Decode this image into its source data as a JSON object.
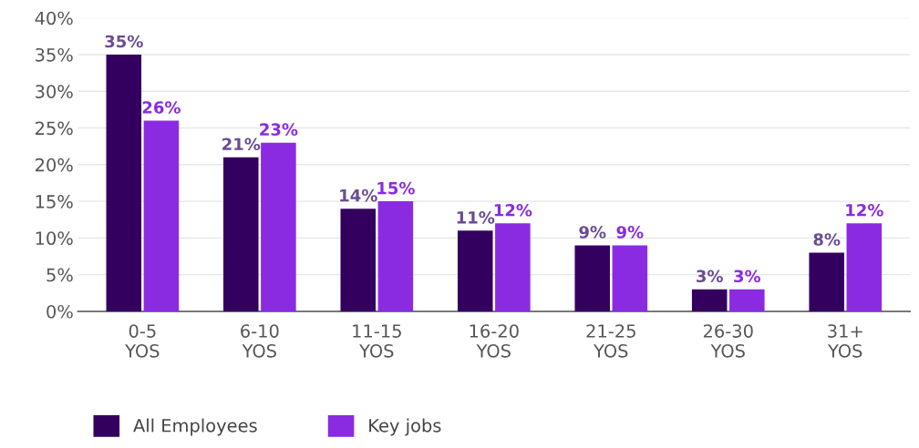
{
  "chart_data": {
    "type": "bar",
    "categories": [
      "0-5\nYOS",
      "6-10\nYOS",
      "11-15\nYOS",
      "16-20\nYOS",
      "21-25\nYOS",
      "26-30\nYOS",
      "31+\nYOS"
    ],
    "series": [
      {
        "name": "All Employees",
        "color": "#34005f",
        "values": [
          35,
          21,
          14,
          11,
          9,
          3,
          8
        ],
        "value_labels": [
          "35%",
          "21%",
          "14%",
          "11%",
          "9%",
          "3%",
          "8%"
        ]
      },
      {
        "name": "Key jobs",
        "color": "#8a2be2",
        "values": [
          26,
          23,
          15,
          12,
          9,
          3,
          12
        ],
        "value_labels": [
          "26%",
          "23%",
          "15%",
          "12%",
          "9%",
          "3%",
          "12%"
        ]
      }
    ],
    "ylim": [
      0,
      40
    ],
    "yticks": [
      {
        "value": 0,
        "label": "0%"
      },
      {
        "value": 5,
        "label": "5%"
      },
      {
        "value": 10,
        "label": "10%"
      },
      {
        "value": 15,
        "label": "15%"
      },
      {
        "value": 20,
        "label": "20%"
      },
      {
        "value": 25,
        "label": "25%"
      },
      {
        "value": 30,
        "label": "30%"
      },
      {
        "value": 35,
        "label": "35%"
      },
      {
        "value": 40,
        "label": "40%"
      }
    ],
    "grid": "y",
    "legend": "bottom left"
  }
}
